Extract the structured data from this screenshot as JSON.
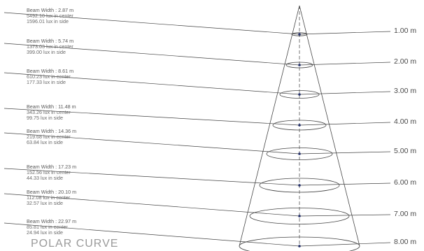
{
  "title": "POLAR CURVE",
  "levels": [
    {
      "distance": "1.00 m",
      "beam_width": "Beam Width : 2.87 m",
      "center": "5492.10 lux in center",
      "side": "1596.01 lux in side"
    },
    {
      "distance": "2.00 m",
      "beam_width": "Beam Width : 5.74 m",
      "center": "1373.03 lux in center",
      "side": "399.00 lux in side"
    },
    {
      "distance": "3.00 m",
      "beam_width": "Beam Width : 8.61 m",
      "center": "610.23 lux in center",
      "side": "177.33 lux in side"
    },
    {
      "distance": "4.00 m",
      "beam_width": "Beam Width : 11.48 m",
      "center": "343.26 lux in center",
      "side": "99.75 lux in side"
    },
    {
      "distance": "5.00 m",
      "beam_width": "Beam Width : 14.36 m",
      "center": "219.68 lux in center",
      "side": "63.84 lux in side"
    },
    {
      "distance": "6.00 m",
      "beam_width": "Beam Width : 17.23 m",
      "center": "152.56 lux in center",
      "side": "44.33 lux in side"
    },
    {
      "distance": "7.00 m",
      "beam_width": "Beam Width : 20.10 m",
      "center": "112.08 lux in center",
      "side": "32.57 lux in side"
    },
    {
      "distance": "8.00 m",
      "beam_width": "Beam Width : 22.97 m",
      "center": "85.81 lux in center",
      "side": "24.94 lux in side"
    }
  ],
  "colors": {
    "line": "#444444",
    "dot": "#1a2a7a",
    "axis": "#555555"
  }
}
